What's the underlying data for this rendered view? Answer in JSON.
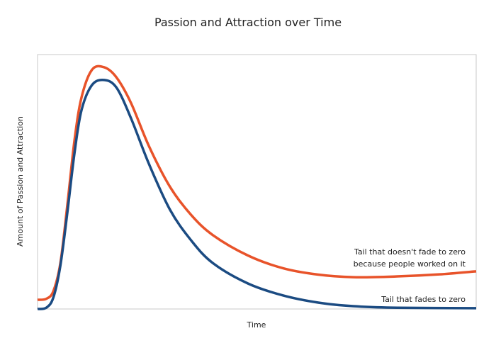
{
  "chart_data": {
    "type": "line",
    "title": "Passion and Attraction over Time",
    "xlabel": "Time",
    "ylabel": "Amount of Passion and Attraction",
    "xlim": [
      0,
      100
    ],
    "ylim": [
      0,
      100
    ],
    "grid": false,
    "legend": "none",
    "series": [
      {
        "color": "#e8532a",
        "x": [
          0,
          2,
          3.6,
          5.2,
          6.8,
          8.4,
          10,
          12.4,
          15.2,
          18,
          21.3,
          25.4,
          30.2,
          35,
          40,
          48,
          56,
          64,
          72,
          82,
          91.6,
          100
        ],
        "y": [
          3.6,
          4,
          7,
          18,
          41,
          66,
          83,
          94,
          95,
          91,
          81,
          64,
          48,
          37,
          29,
          21,
          16,
          13.5,
          12.5,
          12.8,
          13.6,
          14.8
        ]
      },
      {
        "color": "#1b4b82",
        "x": [
          0,
          2,
          3.6,
          5.2,
          6.8,
          8.4,
          10,
          12.4,
          15.2,
          18,
          21.3,
          25.4,
          30.2,
          35,
          40,
          48,
          56,
          64,
          72,
          82,
          100
        ],
        "y": [
          0,
          0.5,
          4.5,
          17,
          38,
          61,
          78,
          88,
          90,
          87,
          75,
          57,
          39,
          27,
          18,
          10,
          5.3,
          2.5,
          1.1,
          0.5,
          0.3
        ]
      }
    ],
    "annotations": [
      {
        "lines": [
          "Tail that doesn't fade to zero",
          "because people worked on it"
        ]
      },
      {
        "lines": [
          "Tail that fades to zero"
        ]
      }
    ]
  }
}
